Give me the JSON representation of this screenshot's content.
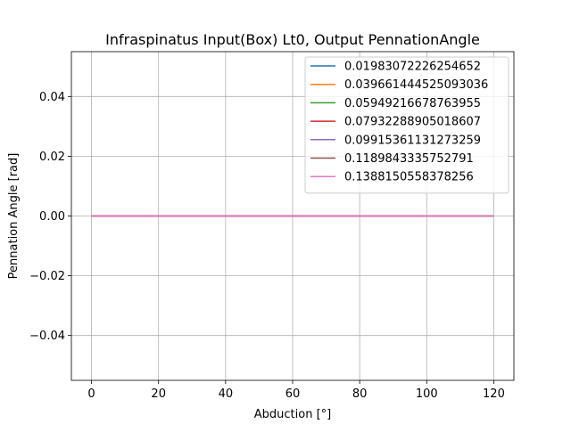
{
  "chart_data": {
    "type": "line",
    "title": "Infraspinatus Input(Box) Lt0, Output PennationAngle",
    "xlabel": "Abduction [°]",
    "ylabel": "Pennation Angle [rad]",
    "xlim": [
      -6,
      126
    ],
    "ylim": [
      -0.055,
      0.055
    ],
    "xticks": [
      0,
      20,
      40,
      60,
      80,
      100,
      120
    ],
    "xtick_labels": [
      "0",
      "20",
      "40",
      "60",
      "80",
      "100",
      "120"
    ],
    "yticks": [
      -0.04,
      -0.02,
      0.0,
      0.02,
      0.04
    ],
    "ytick_labels": [
      "−0.04",
      "−0.02",
      "0.00",
      "0.02",
      "0.04"
    ],
    "grid": true,
    "legend_position": "top-right",
    "x": [
      0,
      120
    ],
    "series": [
      {
        "name": "0.01983072226254652",
        "color": "#1f77b4",
        "values": [
          0.0,
          0.0
        ]
      },
      {
        "name": "0.039661444525093036",
        "color": "#ff7f0e",
        "values": [
          0.0,
          0.0
        ]
      },
      {
        "name": "0.05949216678763955",
        "color": "#2ca02c",
        "values": [
          0.0,
          0.0
        ]
      },
      {
        "name": "0.07932288905018607",
        "color": "#d62728",
        "values": [
          0.0,
          0.0
        ]
      },
      {
        "name": "0.09915361131273259",
        "color": "#9467bd",
        "values": [
          0.0,
          0.0
        ]
      },
      {
        "name": "0.1189843335752791",
        "color": "#8c564b",
        "values": [
          0.0,
          0.0
        ]
      },
      {
        "name": "0.1388150558378256",
        "color": "#e377c2",
        "values": [
          0.0,
          0.0
        ]
      }
    ]
  }
}
